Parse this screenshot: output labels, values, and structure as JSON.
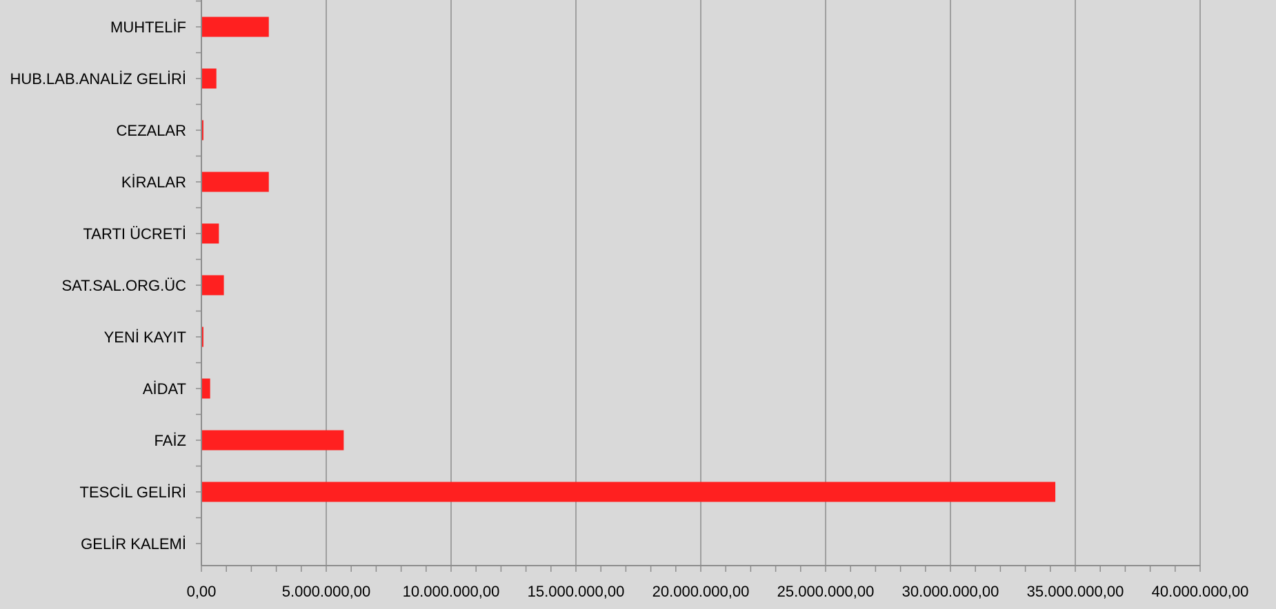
{
  "chart_data": {
    "type": "bar",
    "orientation": "horizontal",
    "categories": [
      "MUHTELİF",
      "HUB.LAB.ANALİZ GELİRİ",
      "CEZALAR",
      "KİRALAR",
      "TARTI ÜCRETİ",
      "SAT.SAL.ORG.ÜC",
      "YENİ KAYIT",
      "AİDAT",
      "FAİZ",
      "TESCİL GELİRİ",
      "GELİR KALEMİ"
    ],
    "values": [
      2700000,
      600000,
      80000,
      2700000,
      700000,
      900000,
      80000,
      350000,
      5700000,
      34200000,
      0
    ],
    "xlim": [
      0,
      40000000
    ],
    "x_tick_values": [
      0,
      5000000,
      10000000,
      15000000,
      20000000,
      25000000,
      30000000,
      35000000,
      40000000
    ],
    "x_tick_labels": [
      "0,00",
      "5.000.000,00",
      "10.000.000,00",
      "15.000.000,00",
      "20.000.000,00",
      "25.000.000,00",
      "30.000.000,00",
      "35.000.000,00",
      "40.000.000,00"
    ],
    "minor_ticks_per_major": 5,
    "grid": "vertical major gridlines",
    "bar_color": "#ff2020",
    "background_color": "#d9d9d9",
    "gridline_color": "#8c8c8c",
    "title": "",
    "xlabel": "",
    "ylabel": ""
  }
}
